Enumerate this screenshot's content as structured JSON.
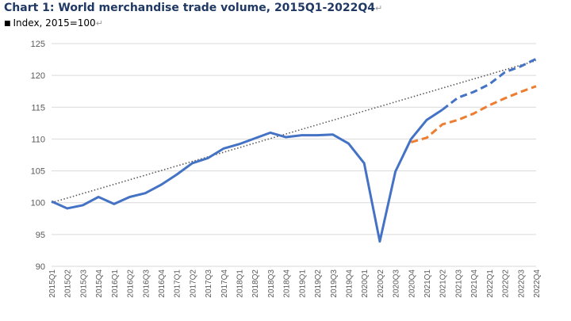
{
  "title": "Chart 1: World merchandise trade volume, 2015Q1-2022Q4",
  "subtitle": "Index, 2015=100",
  "chart_data": {
    "type": "line",
    "title": "Chart 1: World merchandise trade volume, 2015Q1-2022Q4",
    "subtitle": "Index, 2015=100",
    "xlabel": "",
    "ylabel": "",
    "ylim": [
      90,
      125
    ],
    "yticks": [
      90,
      95,
      100,
      105,
      110,
      115,
      120,
      125
    ],
    "grid": "horizontal",
    "legend": "none",
    "categories": [
      "2015Q1",
      "2015Q2",
      "2015Q3",
      "2015Q4",
      "2016Q1",
      "2016Q2",
      "2016Q3",
      "2016Q4",
      "2017Q1",
      "2017Q2",
      "2017Q3",
      "2017Q4",
      "2018Q1",
      "2018Q2",
      "2018Q3",
      "2018Q4",
      "2019Q1",
      "2019Q2",
      "2019Q3",
      "2019Q4",
      "2020Q1",
      "2020Q2",
      "2020Q3",
      "2020Q4",
      "2021Q1",
      "2021Q2",
      "2021Q3",
      "2021Q4",
      "2022Q1",
      "2022Q2",
      "2022Q3",
      "2022Q4"
    ],
    "series": [
      {
        "color": "#4472c4",
        "style": "solid",
        "values": [
          100.2,
          99.1,
          99.6,
          100.9,
          99.8,
          100.9,
          101.5,
          102.8,
          104.4,
          106.2,
          107.0,
          108.5,
          109.2,
          110.1,
          111.0,
          110.3,
          110.6,
          110.6,
          110.7,
          109.3,
          106.2,
          93.9,
          104.9,
          110.0,
          113.0,
          114.6,
          null,
          null,
          null,
          null,
          null,
          null
        ]
      },
      {
        "color": "#4472c4",
        "style": "dashed",
        "values": [
          null,
          null,
          null,
          null,
          null,
          null,
          null,
          null,
          null,
          null,
          null,
          null,
          null,
          null,
          null,
          null,
          null,
          null,
          null,
          null,
          null,
          null,
          null,
          null,
          null,
          114.6,
          116.5,
          117.4,
          118.6,
          120.5,
          121.4,
          122.6
        ]
      },
      {
        "color": "#ed7d31",
        "style": "dashed",
        "values": [
          null,
          null,
          null,
          null,
          null,
          null,
          null,
          null,
          null,
          null,
          null,
          null,
          null,
          null,
          null,
          null,
          null,
          null,
          null,
          null,
          null,
          null,
          null,
          109.5,
          110.2,
          112.3,
          113.0,
          114.0,
          115.3,
          116.4,
          117.4,
          118.3
        ]
      },
      {
        "color": "#595959",
        "style": "dotted",
        "values": [
          100.0,
          100.72,
          101.44,
          102.16,
          102.88,
          103.6,
          104.32,
          105.04,
          105.76,
          106.48,
          107.2,
          107.92,
          108.64,
          109.36,
          110.08,
          110.8,
          111.52,
          112.24,
          112.96,
          113.68,
          114.4,
          115.12,
          115.84,
          116.56,
          117.28,
          118.0,
          118.72,
          119.44,
          120.16,
          120.88,
          121.6,
          122.32
        ]
      }
    ]
  }
}
